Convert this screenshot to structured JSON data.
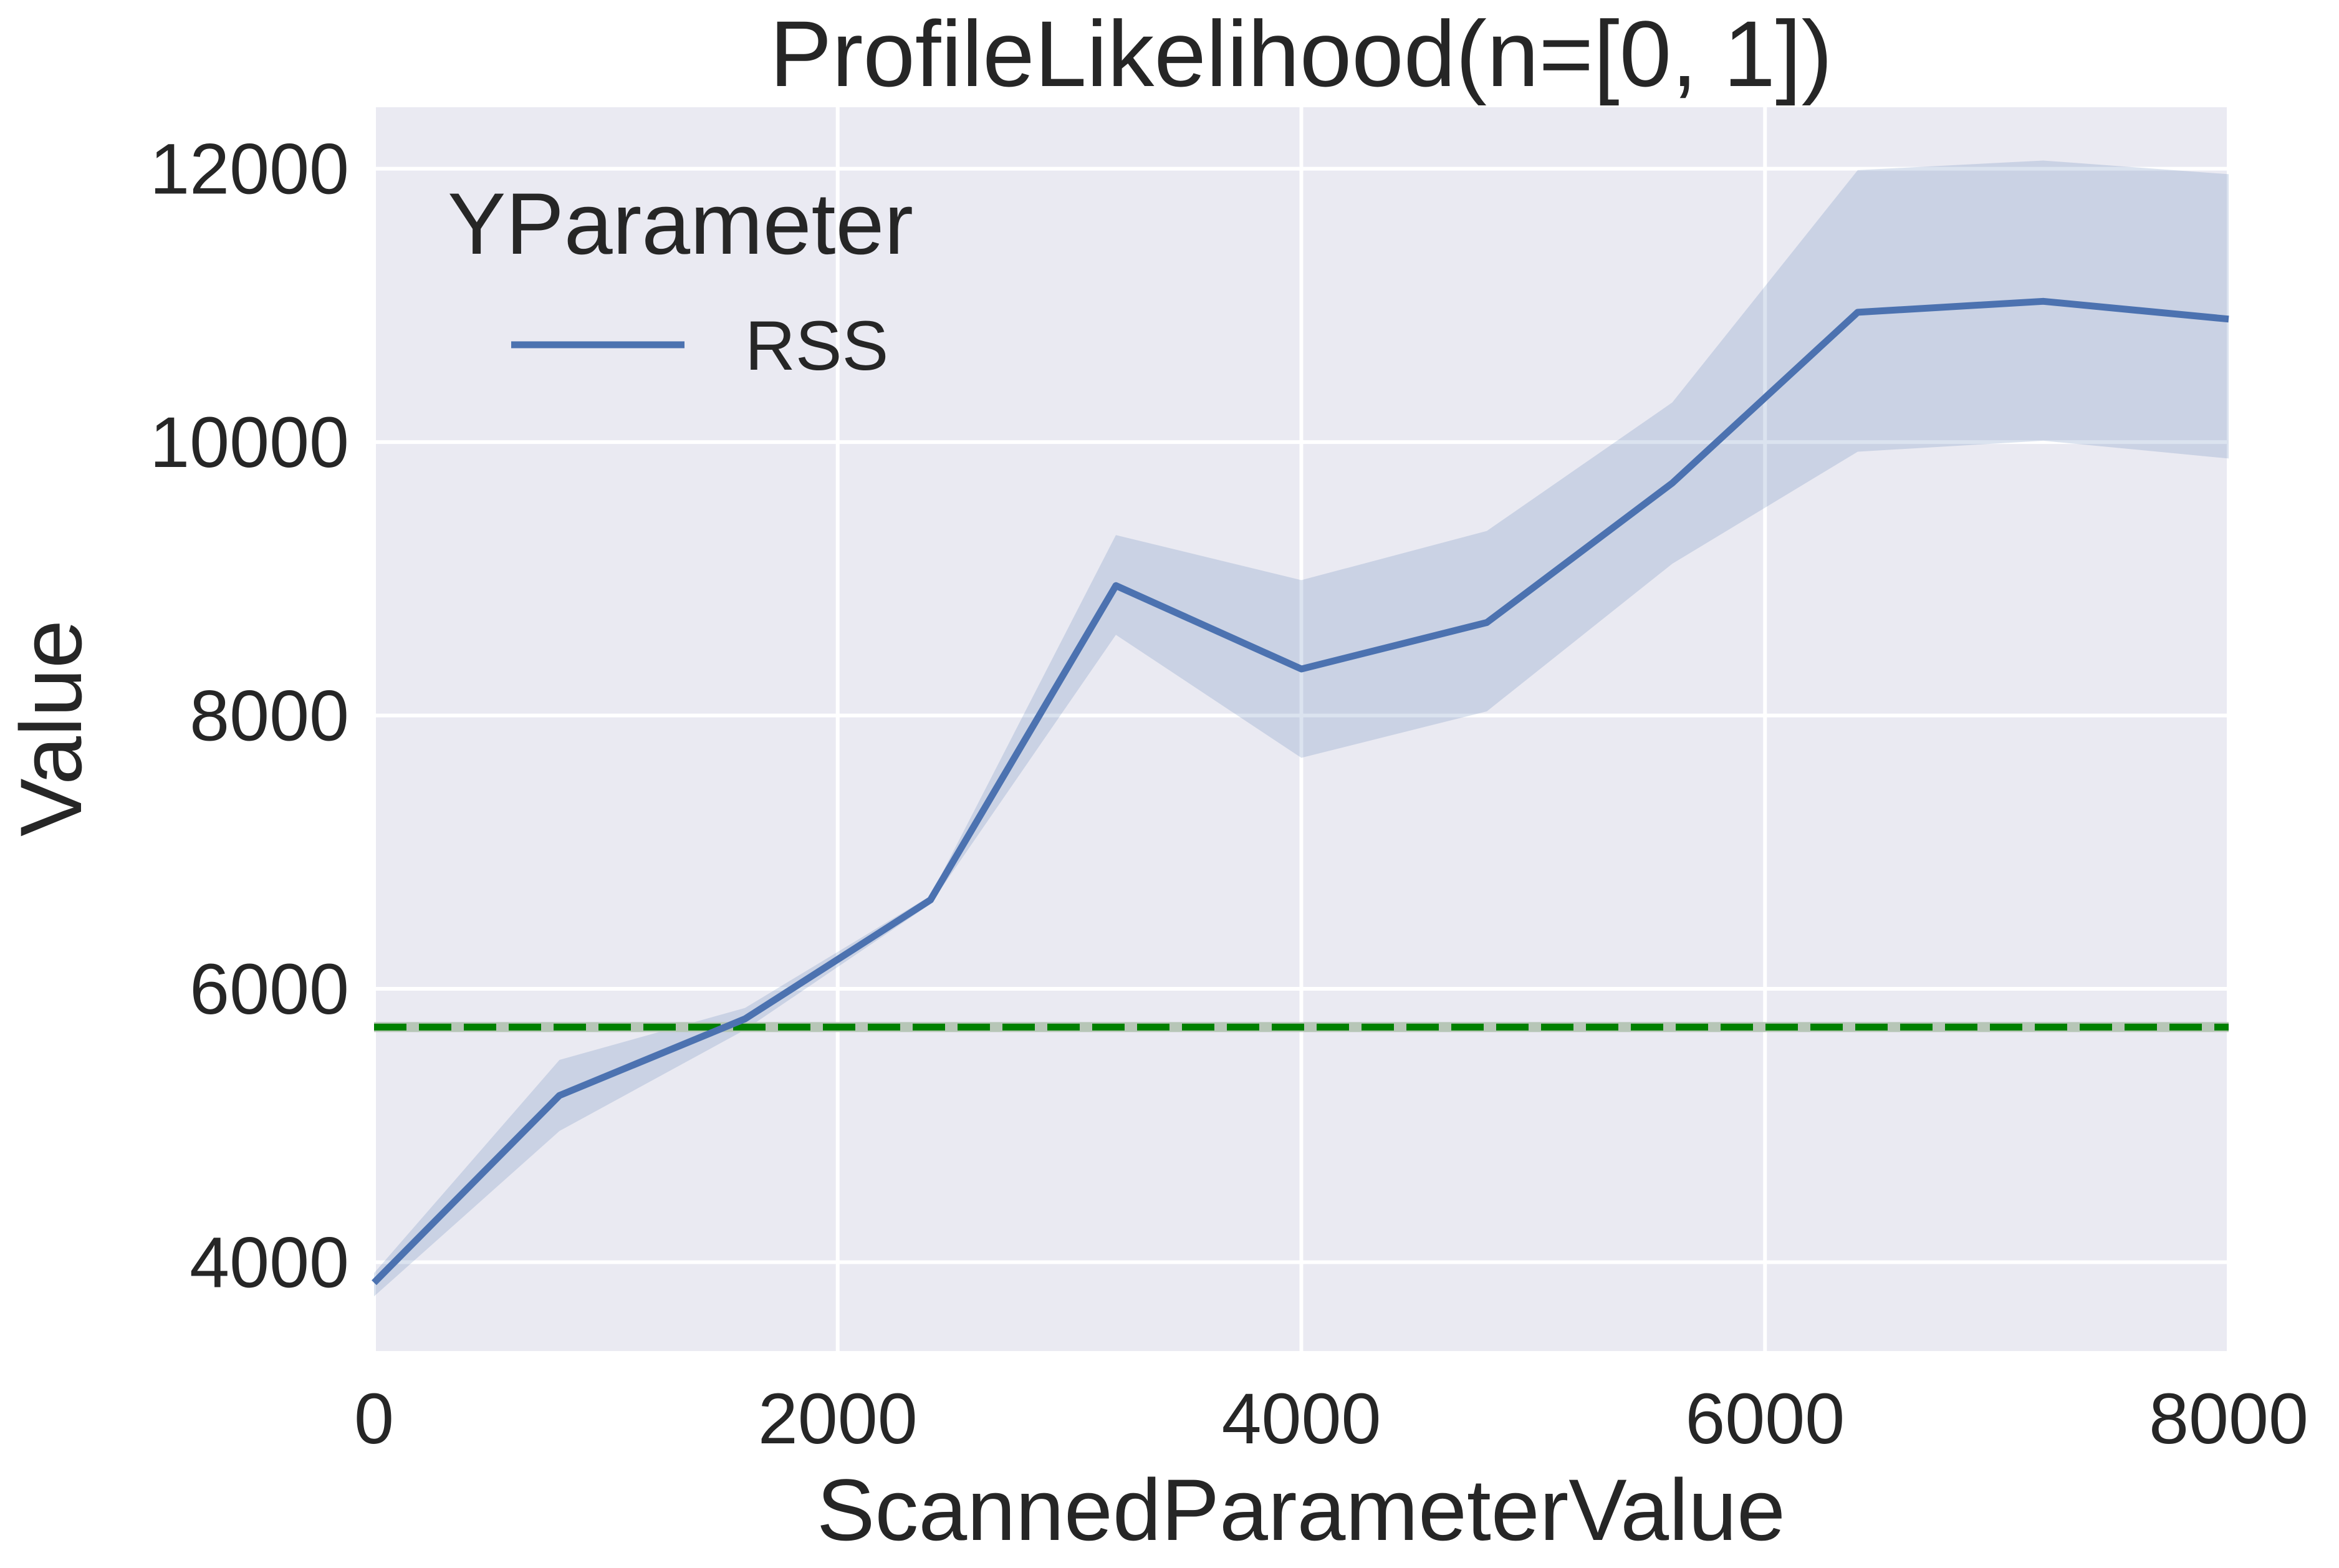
{
  "chart_data": {
    "type": "line",
    "title": "ProfileLikelihood(n=[0, 1])",
    "xlabel": "ScannedParameterValue",
    "ylabel": "Value",
    "xlim": [
      0,
      8000
    ],
    "ylim": [
      3350,
      12450
    ],
    "xticks": [
      0,
      2000,
      4000,
      6000,
      8000
    ],
    "yticks": [
      4000,
      6000,
      8000,
      10000,
      12000
    ],
    "grid": true,
    "legend": {
      "title": "YParameter",
      "placement": "top-left"
    },
    "series": [
      {
        "name": "RSS",
        "color": "#4c72b0",
        "x": [
          0,
          800,
          1600,
          2400,
          3200,
          4000,
          4800,
          5600,
          6400,
          7200,
          8000
        ],
        "y": [
          3850,
          5220,
          5780,
          6650,
          8950,
          8340,
          8680,
          9700,
          10950,
          11030,
          10900
        ],
        "ci_lower": [
          3750,
          4960,
          5700,
          6620,
          8590,
          7690,
          8030,
          9110,
          9930,
          10010,
          9880
        ],
        "ci_upper": [
          3920,
          5480,
          5860,
          6680,
          9320,
          8990,
          9350,
          10290,
          11990,
          12060,
          11960
        ]
      }
    ],
    "reference_line": {
      "y": 5720,
      "color": "#008000",
      "style": "dashed"
    }
  }
}
